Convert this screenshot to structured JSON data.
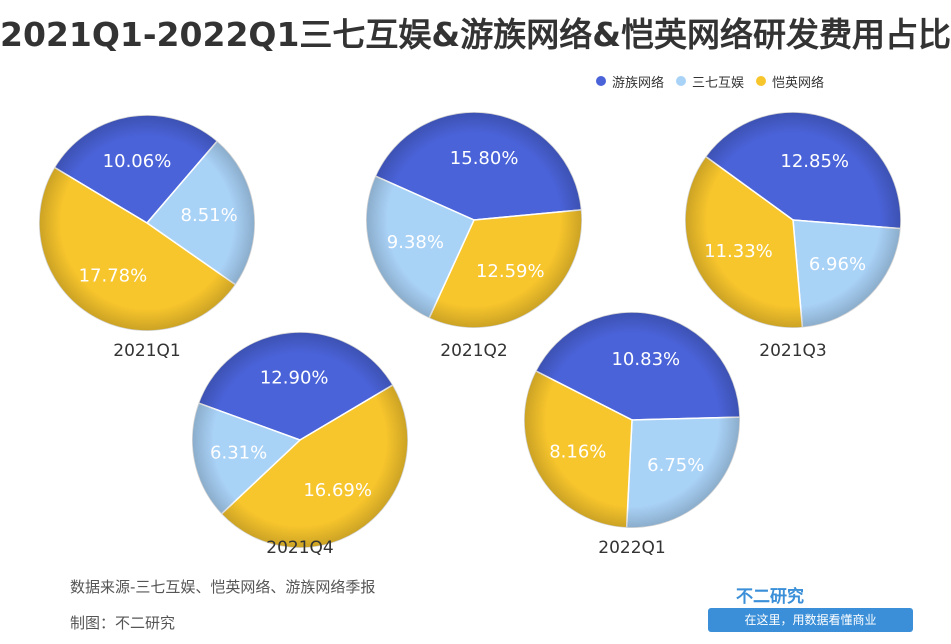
{
  "title": "2021Q1-2022Q1三七互娱&游族网络&恺英网络研发费用占比",
  "legend": [
    {
      "name": "游族网络",
      "color": "#4a63d9"
    },
    {
      "name": "三七互娱",
      "color": "#a9d2f7"
    },
    {
      "name": "恺英网络",
      "color": "#f7c52c"
    }
  ],
  "chart_data": [
    {
      "type": "pie",
      "title": "2021Q1",
      "slices": [
        {
          "name": "游族网络",
          "value": 10.06,
          "label": "10.06%"
        },
        {
          "name": "三七互娱",
          "value": 8.51,
          "label": "8.51%"
        },
        {
          "name": "恺英网络",
          "value": 17.78,
          "label": "17.78%"
        }
      ]
    },
    {
      "type": "pie",
      "title": "2021Q2",
      "slices": [
        {
          "name": "游族网络",
          "value": 15.8,
          "label": "15.80%"
        },
        {
          "name": "恺英网络",
          "value": 12.59,
          "label": "12.59%"
        },
        {
          "name": "三七互娱",
          "value": 9.38,
          "label": "9.38%"
        }
      ]
    },
    {
      "type": "pie",
      "title": "2021Q3",
      "slices": [
        {
          "name": "游族网络",
          "value": 12.85,
          "label": "12.85%"
        },
        {
          "name": "三七互娱",
          "value": 6.96,
          "label": "6.96%"
        },
        {
          "name": "恺英网络",
          "value": 11.33,
          "label": "11.33%"
        }
      ]
    },
    {
      "type": "pie",
      "title": "2021Q4",
      "slices": [
        {
          "name": "游族网络",
          "value": 12.9,
          "label": "12.90%"
        },
        {
          "name": "恺英网络",
          "value": 16.69,
          "label": "16.69%"
        },
        {
          "name": "三七互娱",
          "value": 6.31,
          "label": "6.31%"
        }
      ]
    },
    {
      "type": "pie",
      "title": "2022Q1",
      "slices": [
        {
          "name": "游族网络",
          "value": 10.83,
          "label": "10.83%"
        },
        {
          "name": "三七互娱",
          "value": 6.75,
          "label": "6.75%"
        },
        {
          "name": "恺英网络",
          "value": 8.16,
          "label": "8.16%"
        }
      ]
    }
  ],
  "footer": {
    "source": "数据来源-三七互娱、恺英网络、游族网络季报",
    "credit": "制图：不二研究"
  },
  "brand": {
    "name": "不二研究",
    "slogan": "在这里，用数据看懂商业"
  }
}
